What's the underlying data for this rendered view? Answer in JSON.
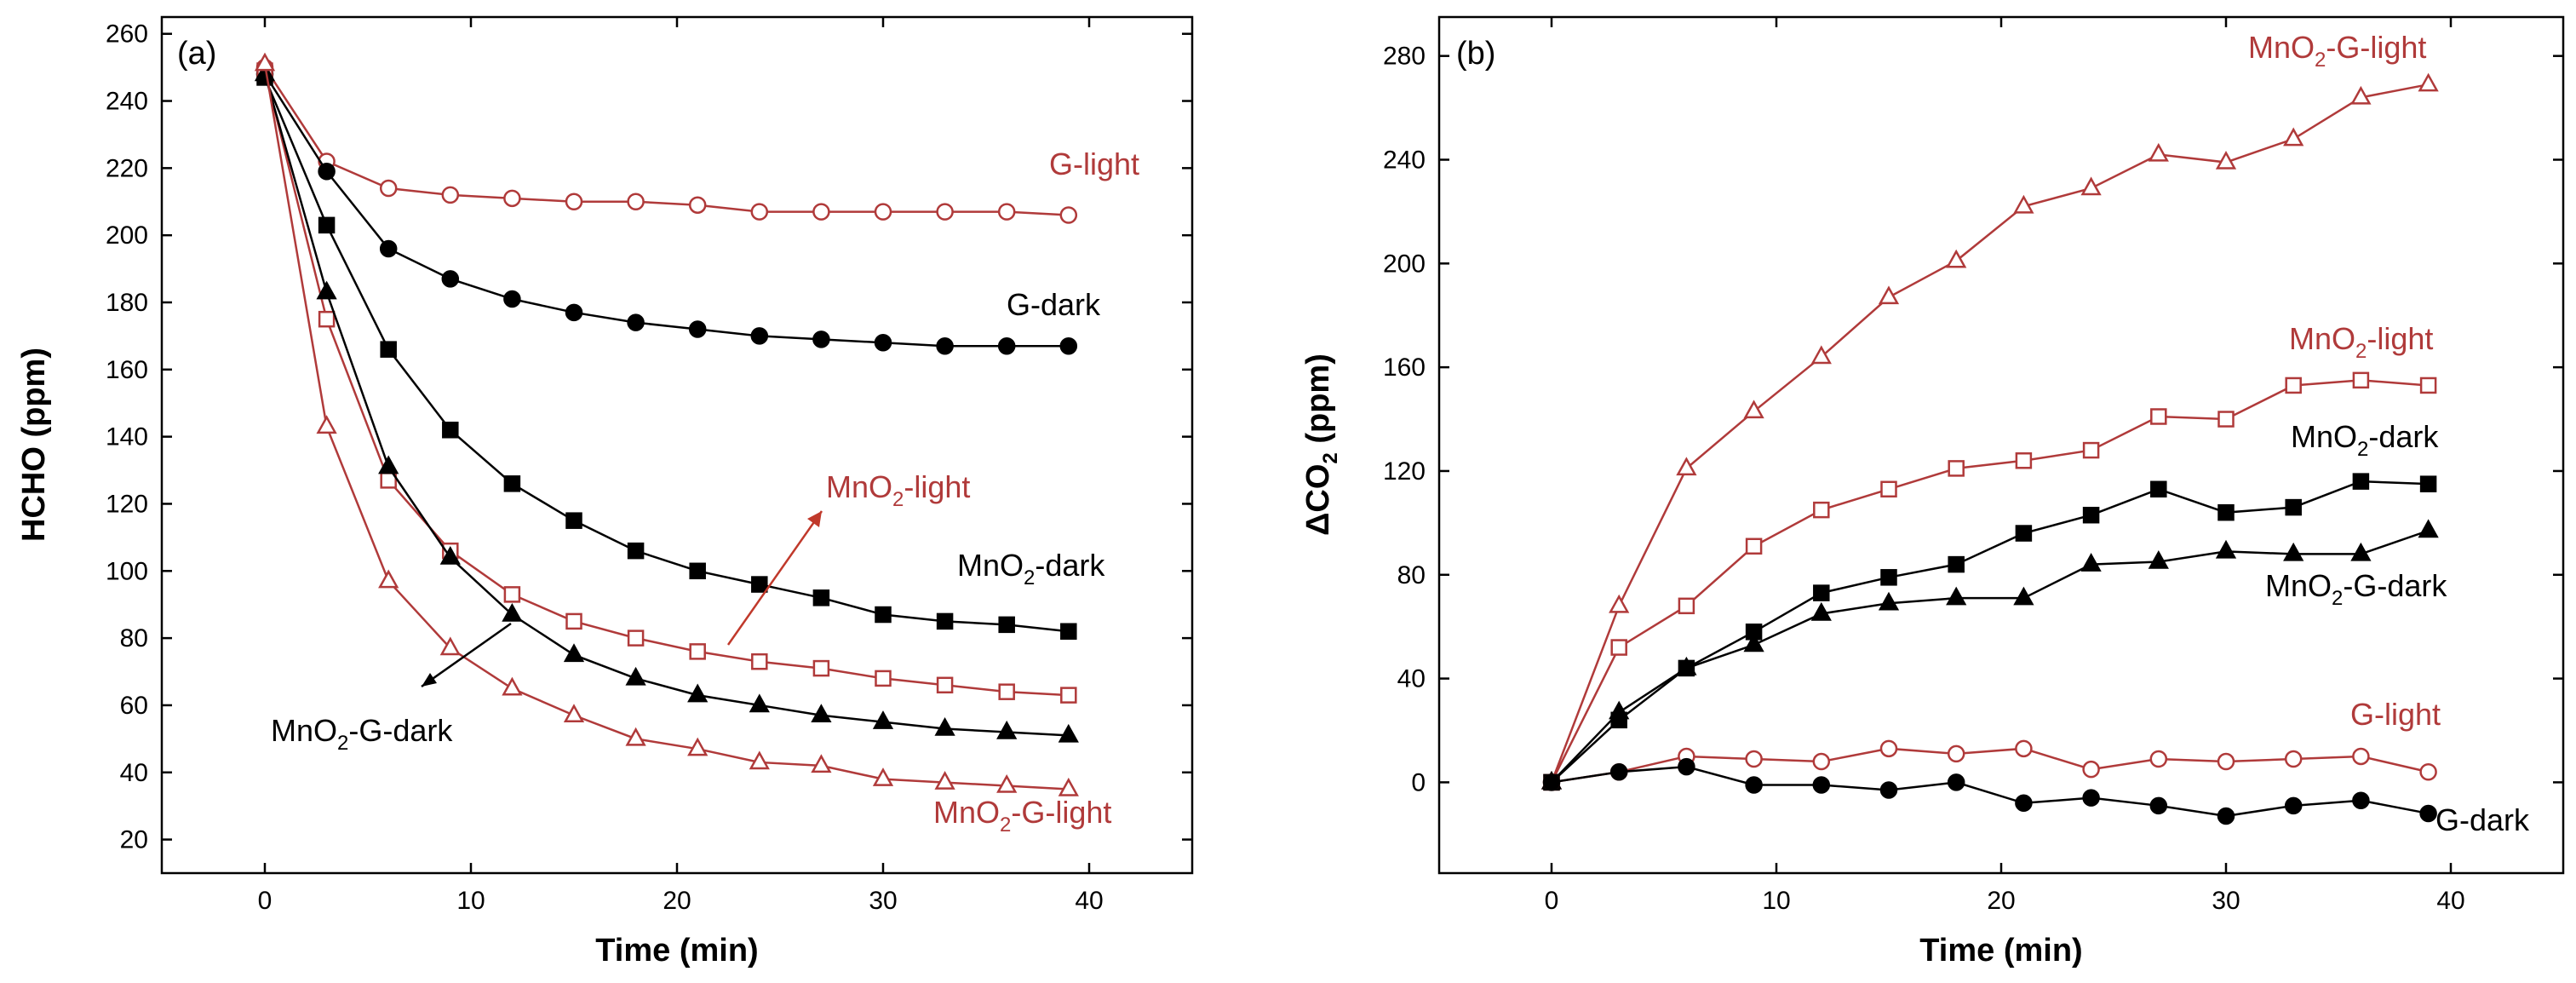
{
  "colors": {
    "red": "#b03a3a",
    "black": "#000000"
  },
  "chart_data": [
    {
      "type": "line",
      "panel": "(a)",
      "xlabel": "Time (min)",
      "ylabel": "HCHO (ppm)",
      "xlim": [
        -5,
        45
      ],
      "ylim": [
        10,
        265
      ],
      "xticks": [
        0,
        10,
        20,
        30,
        40
      ],
      "yticks": [
        20,
        40,
        60,
        80,
        100,
        120,
        140,
        160,
        180,
        200,
        220,
        240,
        260
      ],
      "x": [
        0,
        3,
        6,
        9,
        12,
        15,
        18,
        21,
        24,
        27,
        30,
        33,
        36,
        39
      ],
      "series": [
        {
          "name": "G-light",
          "main": "G-light",
          "sub": "",
          "rest": "",
          "color": "#b03a3a",
          "marker": "circle",
          "filled": false,
          "values": [
            250,
            222,
            214,
            212,
            211,
            210,
            210,
            209,
            207,
            207,
            207,
            207,
            207,
            206
          ]
        },
        {
          "name": "G-dark",
          "main": "G-dark",
          "sub": "",
          "rest": "",
          "color": "#000000",
          "marker": "circle",
          "filled": true,
          "values": [
            248,
            219,
            196,
            187,
            181,
            177,
            174,
            172,
            170,
            169,
            168,
            167,
            167,
            167
          ]
        },
        {
          "name": "MnO2-dark",
          "main": "MnO",
          "sub": "2",
          "rest": "-dark",
          "color": "#000000",
          "marker": "square",
          "filled": true,
          "values": [
            247,
            203,
            166,
            142,
            126,
            115,
            106,
            100,
            96,
            92,
            87,
            85,
            84,
            82
          ]
        },
        {
          "name": "MnO2-light",
          "main": "MnO",
          "sub": "2",
          "rest": "-light",
          "color": "#b03a3a",
          "marker": "square",
          "filled": false,
          "values": [
            249,
            175,
            127,
            106,
            93,
            85,
            80,
            76,
            73,
            71,
            68,
            66,
            64,
            63
          ]
        },
        {
          "name": "MnO2-G-dark",
          "main": "MnO",
          "sub": "2",
          "rest": "-G-dark",
          "color": "#000000",
          "marker": "triangle",
          "filled": true,
          "values": [
            248,
            183,
            131,
            104,
            87,
            75,
            68,
            63,
            60,
            57,
            55,
            53,
            52,
            51
          ]
        },
        {
          "name": "MnO2-G-light",
          "main": "MnO",
          "sub": "2",
          "rest": "-G-light",
          "color": "#b03a3a",
          "marker": "triangle",
          "filled": false,
          "values": [
            251,
            143,
            97,
            77,
            65,
            57,
            50,
            47,
            43,
            42,
            38,
            37,
            36,
            35
          ]
        }
      ]
    },
    {
      "type": "line",
      "panel": "(b)",
      "xlabel": "Time (min)",
      "ylabel_main": "ΔCO",
      "ylabel_sub": "2",
      "ylabel_rest": " (ppm)",
      "xlim": [
        -5,
        45
      ],
      "ylim": [
        -35,
        295
      ],
      "xticks": [
        0,
        10,
        20,
        30,
        40
      ],
      "yticks": [
        0,
        40,
        80,
        120,
        160,
        200,
        240,
        280
      ],
      "x": [
        0,
        3,
        6,
        9,
        12,
        15,
        18,
        21,
        24,
        27,
        30,
        33,
        36,
        39
      ],
      "series": [
        {
          "name": "MnO2-G-light",
          "main": "MnO",
          "sub": "2",
          "rest": "-G-light",
          "color": "#b03a3a",
          "marker": "triangle",
          "filled": false,
          "values": [
            0,
            68,
            121,
            143,
            164,
            187,
            201,
            222,
            229,
            242,
            239,
            248,
            264,
            269
          ]
        },
        {
          "name": "MnO2-light",
          "main": "MnO",
          "sub": "2",
          "rest": "-light",
          "color": "#b03a3a",
          "marker": "square",
          "filled": false,
          "values": [
            0,
            52,
            68,
            91,
            105,
            113,
            121,
            124,
            128,
            141,
            140,
            153,
            155,
            153
          ]
        },
        {
          "name": "MnO2-dark",
          "main": "MnO",
          "sub": "2",
          "rest": "-dark",
          "color": "#000000",
          "marker": "square",
          "filled": true,
          "values": [
            0,
            24,
            44,
            58,
            73,
            79,
            84,
            96,
            103,
            113,
            104,
            106,
            116,
            115
          ]
        },
        {
          "name": "MnO2-G-dark",
          "main": "MnO",
          "sub": "2",
          "rest": "-G-dark",
          "color": "#000000",
          "marker": "triangle",
          "filled": true,
          "values": [
            0,
            27,
            44,
            53,
            65,
            69,
            71,
            71,
            84,
            85,
            89,
            88,
            88,
            97
          ]
        },
        {
          "name": "G-light",
          "main": "G-light",
          "sub": "",
          "rest": "",
          "color": "#b03a3a",
          "marker": "circle",
          "filled": false,
          "values": [
            0,
            4,
            10,
            9,
            8,
            13,
            11,
            13,
            5,
            9,
            8,
            9,
            10,
            4
          ]
        },
        {
          "name": "G-dark",
          "main": "G-dark",
          "sub": "",
          "rest": "",
          "color": "#000000",
          "marker": "circle",
          "filled": true,
          "values": [
            0,
            4,
            6,
            -1,
            -1,
            -3,
            0,
            -8,
            -6,
            -9,
            -13,
            -9,
            -7,
            -12
          ]
        }
      ]
    }
  ]
}
